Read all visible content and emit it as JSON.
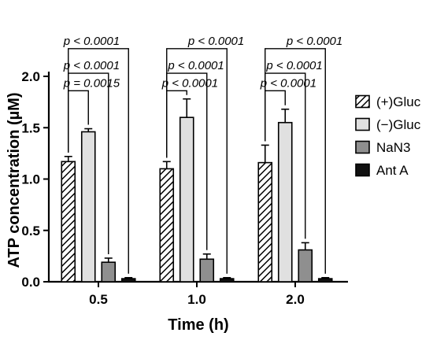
{
  "chart_data": {
    "type": "bar",
    "xlabel": "Time (h)",
    "ylabel": "ATP concentration (µM)",
    "categories": [
      "0.5",
      "1.0",
      "2.0"
    ],
    "ylim": [
      0,
      2.0
    ],
    "yticks": [
      "0.0",
      "0.5",
      "1.0",
      "1.5",
      "2.0"
    ],
    "ytick_values": [
      0,
      0.5,
      1.0,
      1.5,
      2.0
    ],
    "legend_position": "right",
    "grid": false,
    "series": [
      {
        "name": "(+)Gluc",
        "values": [
          1.17,
          1.1,
          1.16
        ],
        "errors": [
          0.05,
          0.07,
          0.17
        ],
        "pattern": "hatch",
        "color": "#ffffff"
      },
      {
        "name": "(−)Gluc",
        "values": [
          1.46,
          1.6,
          1.55
        ],
        "errors": [
          0.03,
          0.18,
          0.13
        ],
        "pattern": "solid",
        "color": "#e0e0e0"
      },
      {
        "name": "NaN3",
        "values": [
          0.19,
          0.22,
          0.31
        ],
        "errors": [
          0.04,
          0.05,
          0.07
        ],
        "pattern": "solid",
        "color": "#8f8f8f"
      },
      {
        "name": "Ant A",
        "values": [
          0.03,
          0.03,
          0.03
        ],
        "errors": [
          0.01,
          0.01,
          0.01
        ],
        "pattern": "solid",
        "color": "#111111"
      }
    ],
    "annotations": [
      {
        "category": 0,
        "from_series": 0,
        "to_series": 1,
        "text": "p = 0.0015",
        "level": 1.86,
        "label_side": "left"
      },
      {
        "category": 0,
        "from_series": 0,
        "to_series": 2,
        "text": "p < 0.0001",
        "level": 2.03,
        "label_side": "left"
      },
      {
        "category": 0,
        "from_series": 0,
        "to_series": 3,
        "text": "p < 0.0001",
        "level": 2.27,
        "label_side": "left"
      },
      {
        "category": 1,
        "from_series": 0,
        "to_series": 1,
        "text": "p < 0.0001",
        "level": 1.86,
        "label_side": "left"
      },
      {
        "category": 1,
        "from_series": 0,
        "to_series": 2,
        "text": "p < 0.0001",
        "level": 2.03,
        "label_side": "right"
      },
      {
        "category": 1,
        "from_series": 0,
        "to_series": 3,
        "text": "p < 0.0001",
        "level": 2.27,
        "label_side": "right"
      },
      {
        "category": 2,
        "from_series": 0,
        "to_series": 1,
        "text": "p < 0.0001",
        "level": 1.86,
        "label_side": "left"
      },
      {
        "category": 2,
        "from_series": 0,
        "to_series": 2,
        "text": "p < 0.0001",
        "level": 2.03,
        "label_side": "right"
      },
      {
        "category": 2,
        "from_series": 0,
        "to_series": 3,
        "text": "p < 0.0001",
        "level": 2.27,
        "label_side": "right"
      }
    ]
  }
}
